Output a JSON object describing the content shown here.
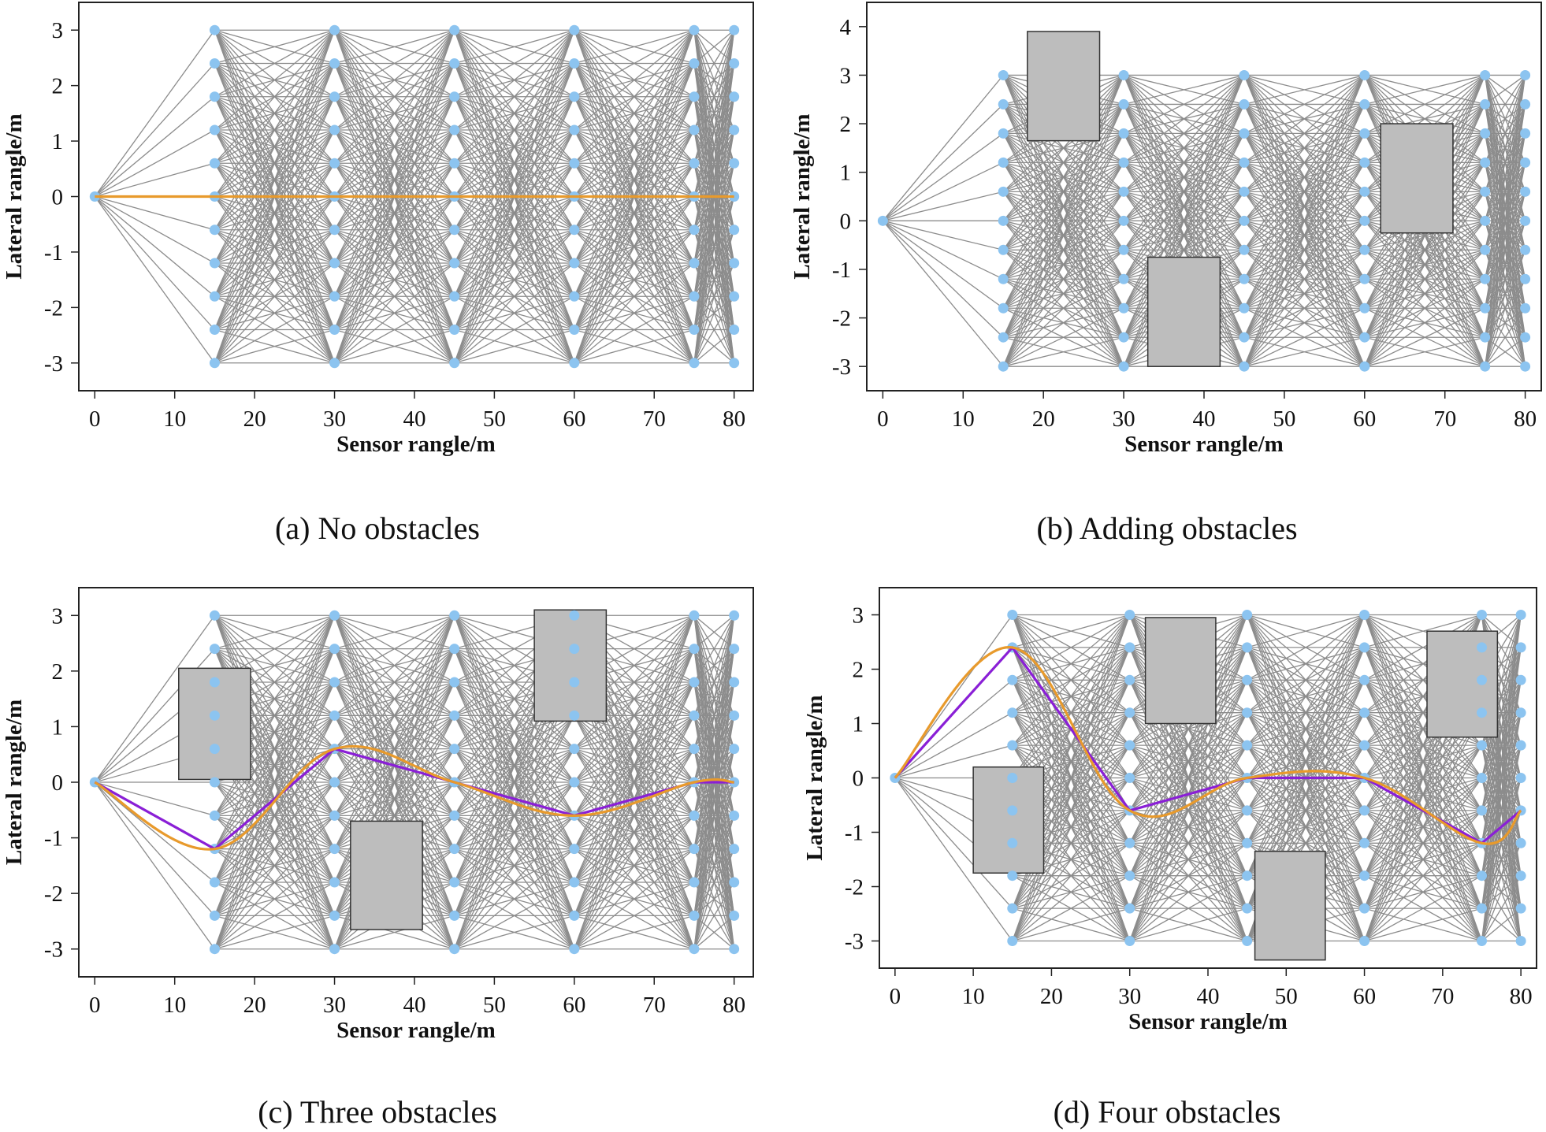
{
  "chart_data": [
    {
      "type": "line",
      "caption": "(a) No obstacles",
      "xlabel": "Sensor rangle/m",
      "ylabel": "Lateral rangle/m",
      "xlim": [
        -2,
        82.4
      ],
      "ylim": [
        -3.5,
        3.5
      ],
      "xticks": [
        0,
        10,
        20,
        30,
        40,
        50,
        60,
        70,
        80
      ],
      "yticks": [
        3,
        2,
        1,
        0,
        -1,
        -2,
        -3
      ],
      "grid": false,
      "node_columns": [
        15,
        30,
        45,
        60,
        75,
        80
      ],
      "node_rows": [
        3,
        2.4,
        1.8,
        1.2,
        0.6,
        0,
        -0.6,
        -1.2,
        -1.8,
        -2.4,
        -3
      ],
      "start_node": [
        0,
        0
      ],
      "obstacles": [],
      "series": [
        {
          "color": "#e89a2c",
          "smooth": true,
          "points": [
            [
              0,
              0
            ],
            [
              15,
              0
            ],
            [
              30,
              0
            ],
            [
              45,
              0
            ],
            [
              60,
              0
            ],
            [
              75,
              0
            ],
            [
              80,
              0
            ]
          ]
        }
      ]
    },
    {
      "type": "line",
      "caption": "(b) Adding obstacles",
      "xlabel": "Sensor rangle/m",
      "ylabel": "Lateral rangle/m",
      "xlim": [
        -2,
        82
      ],
      "ylim": [
        -3.5,
        4.5
      ],
      "xticks": [
        0,
        10,
        20,
        30,
        40,
        50,
        60,
        70,
        80
      ],
      "yticks": [
        4,
        3,
        2,
        1,
        0,
        -1,
        -2,
        -3
      ],
      "grid": false,
      "node_columns": [
        15,
        30,
        45,
        60,
        75,
        80
      ],
      "node_rows": [
        3,
        2.4,
        1.8,
        1.2,
        0.6,
        0,
        -0.6,
        -1.2,
        -1.8,
        -2.4,
        -3
      ],
      "start_node": [
        0,
        0
      ],
      "obstacles": [
        {
          "x": [
            18,
            27
          ],
          "y": [
            1.65,
            3.9
          ]
        },
        {
          "x": [
            33,
            42
          ],
          "y": [
            -3,
            -0.75
          ]
        },
        {
          "x": [
            62,
            71
          ],
          "y": [
            -0.25,
            2.0
          ]
        }
      ],
      "series": []
    },
    {
      "type": "line",
      "caption": "(c) Three obstacles",
      "xlabel": "Sensor rangle/m",
      "ylabel": "Lateral rangle/m",
      "xlim": [
        -2,
        82.4
      ],
      "ylim": [
        -3.5,
        3.5
      ],
      "xticks": [
        0,
        10,
        20,
        30,
        40,
        50,
        60,
        70,
        80
      ],
      "yticks": [
        3,
        2,
        1,
        0,
        -1,
        -2,
        -3
      ],
      "grid": false,
      "node_columns": [
        15,
        30,
        45,
        60,
        75,
        80
      ],
      "node_rows": [
        3,
        2.4,
        1.8,
        1.2,
        0.6,
        0,
        -0.6,
        -1.2,
        -1.8,
        -2.4,
        -3
      ],
      "start_node": [
        0,
        0
      ],
      "obstacles": [
        {
          "x": [
            10.5,
            19.5
          ],
          "y": [
            0.05,
            2.05
          ]
        },
        {
          "x": [
            32,
            41
          ],
          "y": [
            -2.65,
            -0.7
          ]
        },
        {
          "x": [
            55,
            64
          ],
          "y": [
            1.1,
            3.1
          ]
        }
      ],
      "series": [
        {
          "color": "#8a1fd6",
          "smooth": false,
          "points": [
            [
              0,
              0
            ],
            [
              15,
              -1.2
            ],
            [
              30,
              0.6
            ],
            [
              45,
              0
            ],
            [
              60,
              -0.6
            ],
            [
              75,
              0
            ],
            [
              80,
              0
            ]
          ]
        },
        {
          "color": "#e89a2c",
          "smooth": true,
          "points": [
            [
              0,
              0
            ],
            [
              15,
              -1.2
            ],
            [
              30,
              0.6
            ],
            [
              45,
              0
            ],
            [
              60,
              -0.6
            ],
            [
              75,
              0
            ],
            [
              80,
              0
            ]
          ]
        }
      ]
    },
    {
      "type": "line",
      "caption": "(d) Four obstacles",
      "xlabel": "Sensor rangle/m",
      "ylabel": "Lateral rangle/m",
      "xlim": [
        -2,
        82
      ],
      "ylim": [
        -3.5,
        3.5
      ],
      "xticks": [
        0,
        10,
        20,
        30,
        40,
        50,
        60,
        70,
        80
      ],
      "yticks": [
        3,
        2,
        1,
        0,
        -1,
        -2,
        -3
      ],
      "grid": false,
      "node_columns": [
        15,
        30,
        45,
        60,
        75,
        80
      ],
      "node_rows": [
        3,
        2.4,
        1.8,
        1.2,
        0.6,
        0,
        -0.6,
        -1.2,
        -1.8,
        -2.4,
        -3
      ],
      "start_node": [
        0,
        0
      ],
      "obstacles": [
        {
          "x": [
            10,
            19
          ],
          "y": [
            -1.75,
            0.2
          ]
        },
        {
          "x": [
            32,
            41
          ],
          "y": [
            1.0,
            2.95
          ]
        },
        {
          "x": [
            46,
            55
          ],
          "y": [
            -3.35,
            -1.35
          ]
        },
        {
          "x": [
            68,
            77
          ],
          "y": [
            0.75,
            2.7
          ]
        }
      ],
      "series": [
        {
          "color": "#8a1fd6",
          "smooth": false,
          "points": [
            [
              0,
              0
            ],
            [
              15,
              2.4
            ],
            [
              30,
              -0.6
            ],
            [
              45,
              0
            ],
            [
              60,
              0
            ],
            [
              75,
              -1.2
            ],
            [
              80,
              -0.6
            ]
          ]
        },
        {
          "color": "#e89a2c",
          "smooth": true,
          "points": [
            [
              0,
              0
            ],
            [
              15,
              2.4
            ],
            [
              30,
              -0.6
            ],
            [
              45,
              0
            ],
            [
              60,
              0
            ],
            [
              75,
              -1.2
            ],
            [
              80,
              -0.6
            ]
          ]
        }
      ]
    }
  ],
  "colors": {
    "edge": "#8c8c8c",
    "node": "#8cc4f0",
    "obstacle": "#bdbdbd",
    "obstacle_border": "#333333"
  }
}
